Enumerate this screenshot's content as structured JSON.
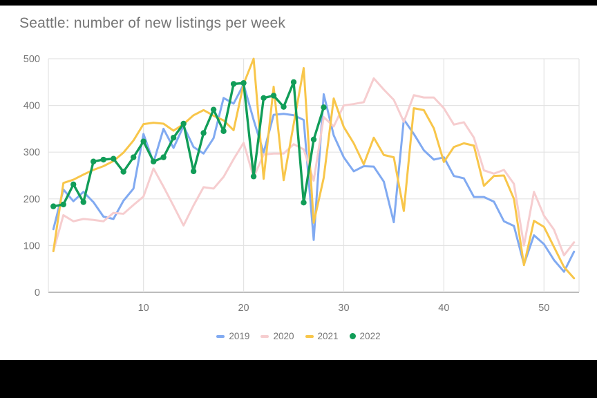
{
  "title": "Seattle: number of new listings per week",
  "colors": {
    "series_2019": "#81aaf1",
    "series_2020": "#f6cdcf",
    "series_2021": "#f8c64a",
    "series_2022": "#119d58",
    "grid": "#e3e3e3",
    "axis": "#a6a6a6",
    "labels": "#757575",
    "background": "#ffffff",
    "letterbox": "#000000"
  },
  "chart_data": {
    "type": "line",
    "title": "Seattle: number of new listings per week",
    "xlabel": "",
    "ylabel": "",
    "x_unit": "week of year",
    "x_range": [
      0.5,
      53.5
    ],
    "ylim": [
      0,
      500
    ],
    "x_ticks": [
      10,
      20,
      30,
      40,
      50
    ],
    "y_ticks": [
      0,
      100,
      200,
      300,
      400,
      500
    ],
    "grid": true,
    "legend_position": "bottom",
    "series": [
      {
        "name": "2019",
        "color": "#81aaf1",
        "marker": false,
        "x_start": 1,
        "values": [
          135,
          220,
          195,
          215,
          193,
          162,
          157,
          196,
          222,
          339,
          278,
          350,
          309,
          356,
          311,
          297,
          330,
          416,
          404,
          445,
          369,
          299,
          380,
          382,
          379,
          369,
          112,
          424,
          336,
          289,
          259,
          270,
          269,
          237,
          150,
          370,
          339,
          304,
          284,
          289,
          249,
          244,
          204,
          204,
          194,
          152,
          142,
          60,
          122,
          103,
          69,
          44,
          87
        ]
      },
      {
        "name": "2020",
        "color": "#f6cdcf",
        "marker": false,
        "x_start": 1,
        "values": [
          88,
          165,
          152,
          157,
          155,
          152,
          170,
          168,
          187,
          205,
          265,
          226,
          185,
          143,
          186,
          225,
          222,
          247,
          285,
          320,
          246,
          295,
          297,
          297,
          317,
          306,
          239,
          375,
          355,
          400,
          403,
          407,
          458,
          434,
          412,
          365,
          422,
          417,
          417,
          394,
          359,
          364,
          331,
          261,
          254,
          262,
          232,
          100,
          215,
          164,
          134,
          79,
          107
        ]
      },
      {
        "name": "2021",
        "color": "#f8c64a",
        "marker": false,
        "x_start": 1,
        "values": [
          88,
          234,
          241,
          252,
          262,
          270,
          281,
          299,
          325,
          360,
          363,
          361,
          346,
          360,
          379,
          390,
          378,
          368,
          347,
          446,
          500,
          243,
          440,
          240,
          360,
          480,
          149,
          245,
          415,
          354,
          319,
          274,
          331,
          294,
          289,
          174,
          394,
          390,
          351,
          279,
          311,
          319,
          314,
          228,
          249,
          250,
          200,
          58,
          153,
          140,
          97,
          54,
          30
        ]
      },
      {
        "name": "2022",
        "color": "#119d58",
        "marker": true,
        "x_start": 1,
        "values": [
          184,
          188,
          231,
          193,
          280,
          284,
          286,
          258,
          289,
          323,
          280,
          289,
          331,
          361,
          259,
          341,
          391,
          345,
          446,
          448,
          248,
          416,
          421,
          397,
          450,
          192,
          327,
          396
        ]
      }
    ]
  },
  "legend": {
    "items": [
      {
        "label": "2019",
        "color": "#81aaf1",
        "swatch": "line"
      },
      {
        "label": "2020",
        "color": "#f6cdcf",
        "swatch": "line"
      },
      {
        "label": "2021",
        "color": "#f8c64a",
        "swatch": "line"
      },
      {
        "label": "2022",
        "color": "#119d58",
        "swatch": "dot"
      }
    ]
  }
}
